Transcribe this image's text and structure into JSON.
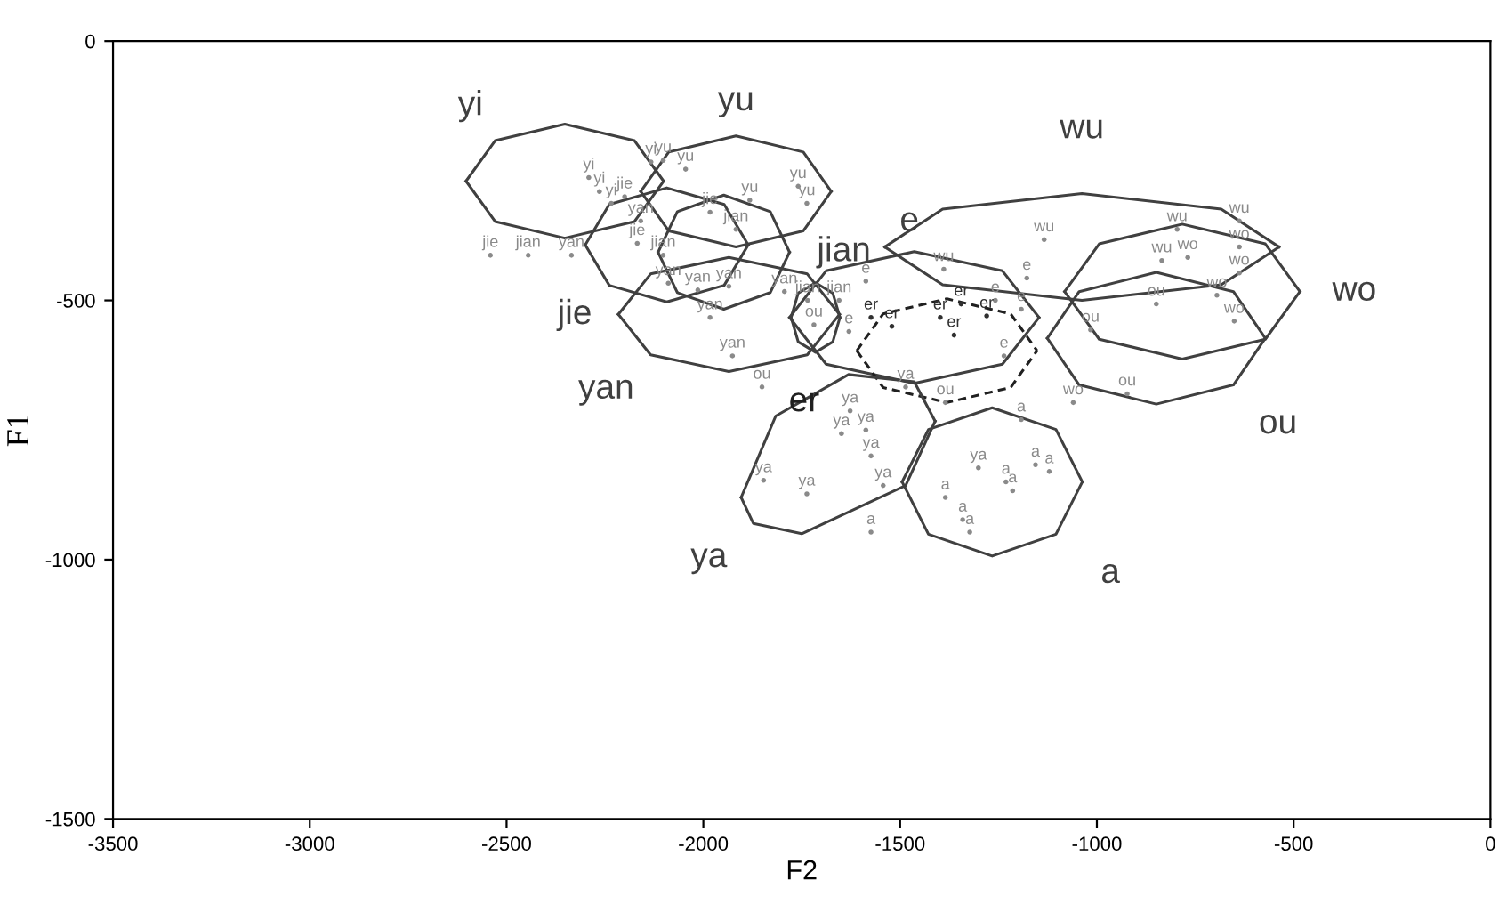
{
  "chart_data": {
    "type": "scatter",
    "xlabel": "F2",
    "ylabel": "F1",
    "xlim": [
      -3500,
      0
    ],
    "ylim": [
      -1500,
      0
    ],
    "xticks": [
      -3500,
      -3000,
      -2500,
      -2000,
      -1500,
      -1000,
      -500,
      0
    ],
    "yticks": [
      -1500,
      -1000,
      -500,
      0
    ],
    "grid": false,
    "legend": false,
    "series": [
      {
        "name": "yi",
        "color": "#8a8a8a",
        "x": [
          -2291,
          -2264,
          -2234,
          -2133
        ],
        "values": [
          -263,
          -290,
          -313,
          -233
        ]
      },
      {
        "name": "yu",
        "color": "#8a8a8a",
        "x": [
          -2102,
          -2045,
          -1759,
          -1737,
          -1882
        ],
        "values": [
          -230,
          -247,
          -280,
          -313,
          -307
        ]
      },
      {
        "name": "jie",
        "color": "#8a8a8a",
        "x": [
          -2541,
          -2200,
          -2168,
          -1983
        ],
        "values": [
          -413,
          -300,
          -390,
          -330
        ]
      },
      {
        "name": "jian",
        "color": "#8a8a8a",
        "x": [
          -2445,
          -2102,
          -1917,
          -1735,
          -1655
        ],
        "values": [
          -413,
          -413,
          -363,
          -500,
          -500
        ]
      },
      {
        "name": "yan",
        "color": "#8a8a8a",
        "x": [
          -2335,
          -2159,
          -2089,
          -2014,
          -1935,
          -1983,
          -1926,
          -1794
        ],
        "values": [
          -413,
          -347,
          -467,
          -480,
          -473,
          -533,
          -607,
          -483
        ]
      },
      {
        "name": "ou",
        "color": "#8a8a8a",
        "x": [
          -1719,
          -1851,
          -1016,
          -849,
          -923,
          -1385
        ],
        "values": [
          -547,
          -667,
          -557,
          -507,
          -680,
          -697
        ]
      },
      {
        "name": "wo",
        "color": "#8a8a8a",
        "x": [
          -769,
          -638,
          -638,
          -695,
          -651,
          -1060
        ],
        "values": [
          -417,
          -397,
          -447,
          -490,
          -540,
          -697
        ]
      },
      {
        "name": "wu",
        "color": "#8a8a8a",
        "x": [
          -1134,
          -796,
          -638,
          -835,
          -1389
        ],
        "values": [
          -383,
          -363,
          -347,
          -423,
          -440
        ]
      },
      {
        "name": "e",
        "color": "#8a8a8a",
        "x": [
          -1587,
          -1258,
          -1192,
          -1236,
          -1630,
          -1178
        ],
        "values": [
          -463,
          -500,
          -517,
          -607,
          -560,
          -457
        ]
      },
      {
        "name": "er",
        "color": "#303030",
        "x": [
          -1574,
          -1521,
          -1398,
          -1363,
          -1280,
          -1345
        ],
        "values": [
          -533,
          -550,
          -533,
          -567,
          -530,
          -507
        ]
      },
      {
        "name": "ya",
        "color": "#8a8a8a",
        "x": [
          -1627,
          -1649,
          -1587,
          -1574,
          -1847,
          -1737,
          -1543,
          -1301,
          -1486
        ],
        "values": [
          -713,
          -757,
          -750,
          -800,
          -847,
          -873,
          -857,
          -823,
          -667
        ]
      },
      {
        "name": "a",
        "color": "#8a8a8a",
        "x": [
          -1192,
          -1156,
          -1121,
          -1231,
          -1214,
          -1385,
          -1341,
          -1323,
          -1574
        ],
        "values": [
          -730,
          -817,
          -830,
          -850,
          -867,
          -880,
          -923,
          -947,
          -947
        ]
      },
      {
        "name": "yi",
        "type": "line",
        "color": "#404040",
        "x": [
          -2603,
          -2529,
          -2352,
          -2175,
          -2101
        ],
        "values": [
          -270,
          -192,
          -160,
          -192,
          -270
        ]
      },
      {
        "type": "line",
        "color": "#404040",
        "x": [
          -2603,
          -2529,
          -2352,
          -2175,
          -2101
        ],
        "values": [
          -270,
          -348,
          -380,
          -348,
          -270
        ]
      },
      {
        "name": "yu",
        "type": "line",
        "color": "#404040",
        "x": [
          -2159,
          -2088,
          -1917,
          -1746,
          -1675
        ],
        "values": [
          -290,
          -214,
          -183,
          -214,
          -290
        ]
      },
      {
        "type": "line",
        "color": "#404040",
        "x": [
          -2159,
          -2088,
          -1917,
          -1746,
          -1675
        ],
        "values": [
          -290,
          -366,
          -397,
          -366,
          -290
        ]
      },
      {
        "type": "line",
        "color": "#404040",
        "x": [
          -2300,
          -2239,
          -2093,
          -1947,
          -1886
        ],
        "values": [
          -393,
          -315,
          -283,
          -315,
          -393
        ]
      },
      {
        "name": "jie",
        "type": "line",
        "color": "#404040",
        "x": [
          -2300,
          -2239,
          -2093,
          -1947,
          -1886
        ],
        "values": [
          -393,
          -471,
          -503,
          -471,
          -393
        ]
      },
      {
        "name": "jian",
        "type": "line",
        "color": "#404040",
        "x": [
          -2115,
          -2066,
          -1948,
          -1830,
          -1781
        ],
        "values": [
          -407,
          -329,
          -297,
          -329,
          -407
        ]
      },
      {
        "type": "line",
        "color": "#404040",
        "x": [
          -2115,
          -2066,
          -1948,
          -1830,
          -1781
        ],
        "values": [
          -407,
          -485,
          -517,
          -485,
          -407
        ]
      },
      {
        "type": "line",
        "color": "#404040",
        "x": [
          -2216,
          -2134,
          -1935,
          -1736,
          -1654
        ],
        "values": [
          -527,
          -449,
          -417,
          -449,
          -527
        ]
      },
      {
        "name": "yan",
        "type": "line",
        "color": "#404040",
        "x": [
          -2216,
          -2134,
          -1935,
          -1736,
          -1654
        ],
        "values": [
          -527,
          -605,
          -637,
          -605,
          -527
        ]
      },
      {
        "type": "line",
        "color": "#404040",
        "x": [
          -1777,
          -1759,
          -1715,
          -1671,
          -1653
        ],
        "values": [
          -533,
          -486,
          -466,
          -486,
          -533
        ]
      },
      {
        "type": "line",
        "color": "#404040",
        "x": [
          -1777,
          -1759,
          -1715,
          -1671,
          -1653
        ],
        "values": [
          -533,
          -580,
          -600,
          -580,
          -533
        ]
      },
      {
        "name": "e",
        "type": "line",
        "color": "#404040",
        "x": [
          -1781,
          -1688,
          -1464,
          -1240,
          -1147
        ],
        "values": [
          -533,
          -443,
          -406,
          -443,
          -533
        ]
      },
      {
        "type": "line",
        "color": "#404040",
        "x": [
          -1781,
          -1688,
          -1464,
          -1240,
          -1147
        ],
        "values": [
          -533,
          -623,
          -660,
          -623,
          -533
        ]
      },
      {
        "type": "line",
        "color": "#202020",
        "line_style": "dashed",
        "x": [
          -1610,
          -1543,
          -1381,
          -1219,
          -1152
        ],
        "values": [
          -597,
          -526,
          -497,
          -526,
          -597
        ]
      },
      {
        "name": "er",
        "type": "line",
        "color": "#202020",
        "line_style": "dashed",
        "x": [
          -1610,
          -1543,
          -1381,
          -1219,
          -1152
        ],
        "values": [
          -597,
          -668,
          -697,
          -668,
          -597
        ]
      },
      {
        "name": "wu",
        "type": "line",
        "color": "#404040",
        "x": [
          -1539,
          -1392,
          -1038,
          -684,
          -537
        ],
        "values": [
          -397,
          -324,
          -294,
          -324,
          -397
        ]
      },
      {
        "type": "line",
        "color": "#404040",
        "x": [
          -1539,
          -1392,
          -1038,
          -684,
          -537
        ],
        "values": [
          -397,
          -470,
          -500,
          -470,
          -397
        ]
      },
      {
        "name": "wo",
        "type": "line",
        "color": "#404040",
        "x": [
          -1082,
          -994,
          -783,
          -572,
          -484
        ],
        "values": [
          -483,
          -391,
          -353,
          -391,
          -483
        ]
      },
      {
        "type": "line",
        "color": "#404040",
        "x": [
          -1082,
          -994,
          -783,
          -572,
          -484
        ],
        "values": [
          -483,
          -575,
          -613,
          -575,
          -483
        ]
      },
      {
        "type": "line",
        "color": "#404040",
        "x": [
          -1126,
          -1045,
          -849,
          -653,
          -572
        ],
        "values": [
          -573,
          -483,
          -446,
          -483,
          -573
        ]
      },
      {
        "name": "ou",
        "type": "line",
        "color": "#404040",
        "x": [
          -1126,
          -1045,
          -849,
          -653,
          -572
        ],
        "values": [
          -573,
          -663,
          -700,
          -663,
          -573
        ]
      },
      {
        "type": "line",
        "color": "#404040",
        "x": [
          -1904,
          -1816,
          -1631,
          -1464,
          -1411
        ],
        "values": [
          -880,
          -723,
          -643,
          -657,
          -733
        ]
      },
      {
        "name": "ya",
        "type": "line",
        "color": "#404040",
        "x": [
          -1904,
          -1873,
          -1750,
          -1486,
          -1411
        ],
        "values": [
          -880,
          -930,
          -950,
          -857,
          -733
        ]
      },
      {
        "type": "line",
        "color": "#404040",
        "x": [
          -1495,
          -1428,
          -1266,
          -1104,
          -1037
        ],
        "values": [
          -850,
          -749,
          -707,
          -749,
          -850
        ]
      },
      {
        "name": "a",
        "type": "line",
        "color": "#404040",
        "x": [
          -1495,
          -1428,
          -1266,
          -1104,
          -1037
        ],
        "values": [
          -850,
          -951,
          -993,
          -951,
          -850
        ]
      }
    ]
  }
}
